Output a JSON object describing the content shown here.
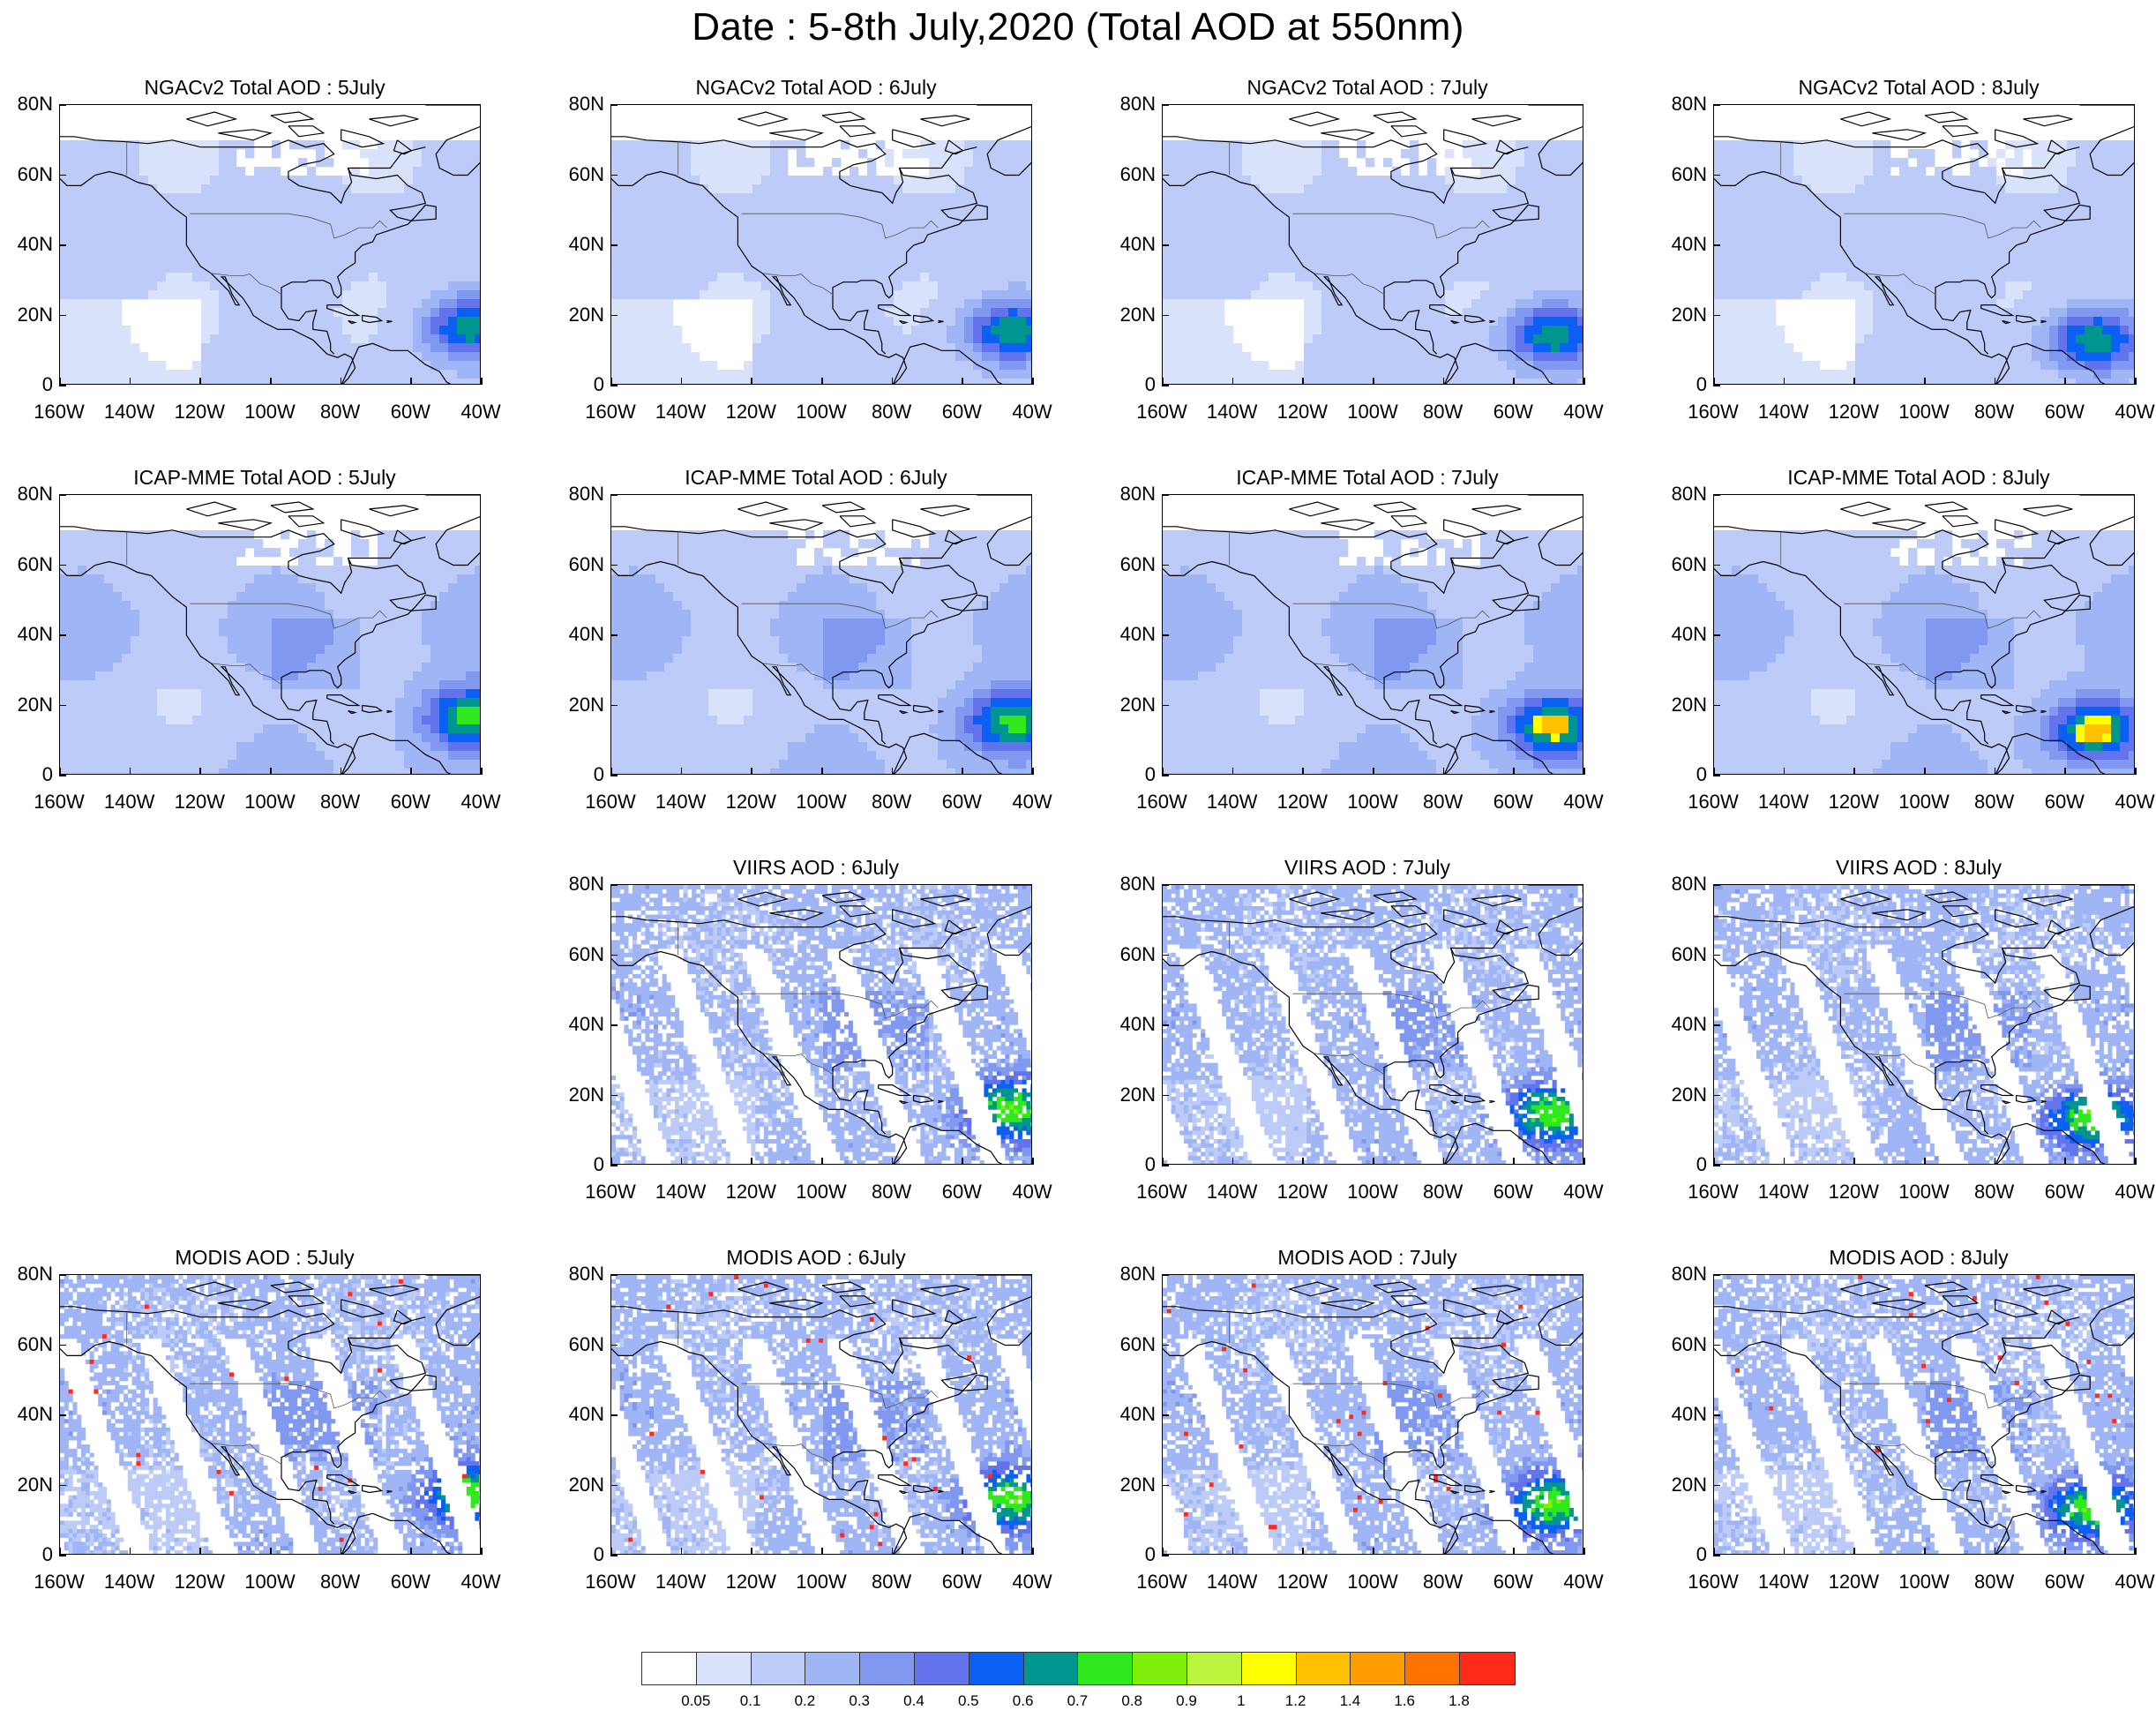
{
  "title": "Date : 5-8th July,2020 (Total AOD at 550nm)",
  "y_labels": [
    "80N",
    "60N",
    "40N",
    "20N",
    "0"
  ],
  "x_labels": [
    "160W",
    "140W",
    "120W",
    "100W",
    "80W",
    "60W",
    "40W"
  ],
  "panels": [
    {
      "title": "NGACv2 Total AOD : 5July",
      "source": "ngac",
      "day": 5,
      "row": 0,
      "col": 0
    },
    {
      "title": "NGACv2 Total AOD : 6July",
      "source": "ngac",
      "day": 6,
      "row": 0,
      "col": 1
    },
    {
      "title": "NGACv2 Total AOD : 7July",
      "source": "ngac",
      "day": 7,
      "row": 0,
      "col": 2
    },
    {
      "title": "NGACv2 Total AOD : 8July",
      "source": "ngac",
      "day": 8,
      "row": 0,
      "col": 3
    },
    {
      "title": "ICAP-MME Total AOD : 5July",
      "source": "icap",
      "day": 5,
      "row": 1,
      "col": 0
    },
    {
      "title": "ICAP-MME Total AOD : 6July",
      "source": "icap",
      "day": 6,
      "row": 1,
      "col": 1
    },
    {
      "title": "ICAP-MME Total AOD : 7July",
      "source": "icap",
      "day": 7,
      "row": 1,
      "col": 2
    },
    {
      "title": "ICAP-MME Total AOD : 8July",
      "source": "icap",
      "day": 8,
      "row": 1,
      "col": 3
    },
    {
      "title": "VIIRS AOD : 6July",
      "source": "viirs",
      "day": 6,
      "row": 2,
      "col": 1
    },
    {
      "title": "VIIRS AOD : 7July",
      "source": "viirs",
      "day": 7,
      "row": 2,
      "col": 2
    },
    {
      "title": "VIIRS AOD : 8July",
      "source": "viirs",
      "day": 8,
      "row": 2,
      "col": 3
    },
    {
      "title": "MODIS AOD : 5July",
      "source": "modis",
      "day": 5,
      "row": 3,
      "col": 0
    },
    {
      "title": "MODIS AOD : 6July",
      "source": "modis",
      "day": 6,
      "row": 3,
      "col": 1
    },
    {
      "title": "MODIS AOD : 7July",
      "source": "modis",
      "day": 7,
      "row": 3,
      "col": 2
    },
    {
      "title": "MODIS AOD : 8July",
      "source": "modis",
      "day": 8,
      "row": 3,
      "col": 3
    }
  ],
  "colorbar": {
    "colors": [
      "#ffffff",
      "#d9e2fb",
      "#bccbf8",
      "#9fb5f5",
      "#8198f1",
      "#6273ec",
      "#0b5ff2",
      "#00958f",
      "#2fe91e",
      "#7ff00b",
      "#bcf53d",
      "#ffff00",
      "#ffc000",
      "#ff9c00",
      "#ff7300",
      "#ff2a1a"
    ],
    "labels": [
      "0.05",
      "0.1",
      "0.2",
      "0.3",
      "0.4",
      "0.5",
      "0.6",
      "0.7",
      "0.8",
      "0.9",
      "1",
      "1.2",
      "1.4",
      "1.6",
      "1.8"
    ]
  }
}
